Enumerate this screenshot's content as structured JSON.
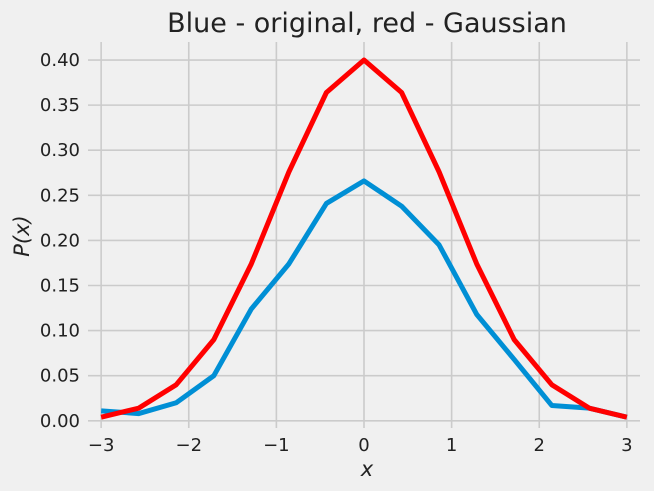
{
  "chart_data": {
    "type": "line",
    "title": "Blue - original, red - Gaussian",
    "xlabel": "x",
    "ylabel": "P(x)",
    "xlim": [
      -3.15,
      3.15
    ],
    "ylim": [
      -0.008,
      0.42
    ],
    "x_ticks": [
      -3,
      -2,
      -1,
      0,
      1,
      2,
      3
    ],
    "x_tick_labels": [
      "−3",
      "−2",
      "−1",
      "0",
      "1",
      "2",
      "3"
    ],
    "y_ticks": [
      0.0,
      0.05,
      0.1,
      0.15,
      0.2,
      0.25,
      0.3,
      0.35,
      0.4
    ],
    "y_tick_labels": [
      "0.00",
      "0.05",
      "0.10",
      "0.15",
      "0.20",
      "0.25",
      "0.30",
      "0.35",
      "0.40"
    ],
    "grid": true,
    "x": [
      -3.0,
      -2.571,
      -2.143,
      -1.714,
      -1.286,
      -0.857,
      -0.429,
      0.0,
      0.429,
      0.857,
      1.286,
      1.714,
      2.143,
      2.571,
      3.0
    ],
    "series": [
      {
        "color": "#008fd5",
        "values": [
          0.011,
          0.008,
          0.02,
          0.05,
          0.124,
          0.174,
          0.241,
          0.266,
          0.238,
          0.195,
          0.118,
          0.068,
          0.017,
          0.014,
          0.004
        ]
      },
      {
        "color": "#ff0000",
        "values": [
          0.004,
          0.014,
          0.04,
          0.09,
          0.174,
          0.276,
          0.364,
          0.4,
          0.364,
          0.276,
          0.174,
          0.09,
          0.04,
          0.014,
          0.004
        ]
      }
    ]
  }
}
